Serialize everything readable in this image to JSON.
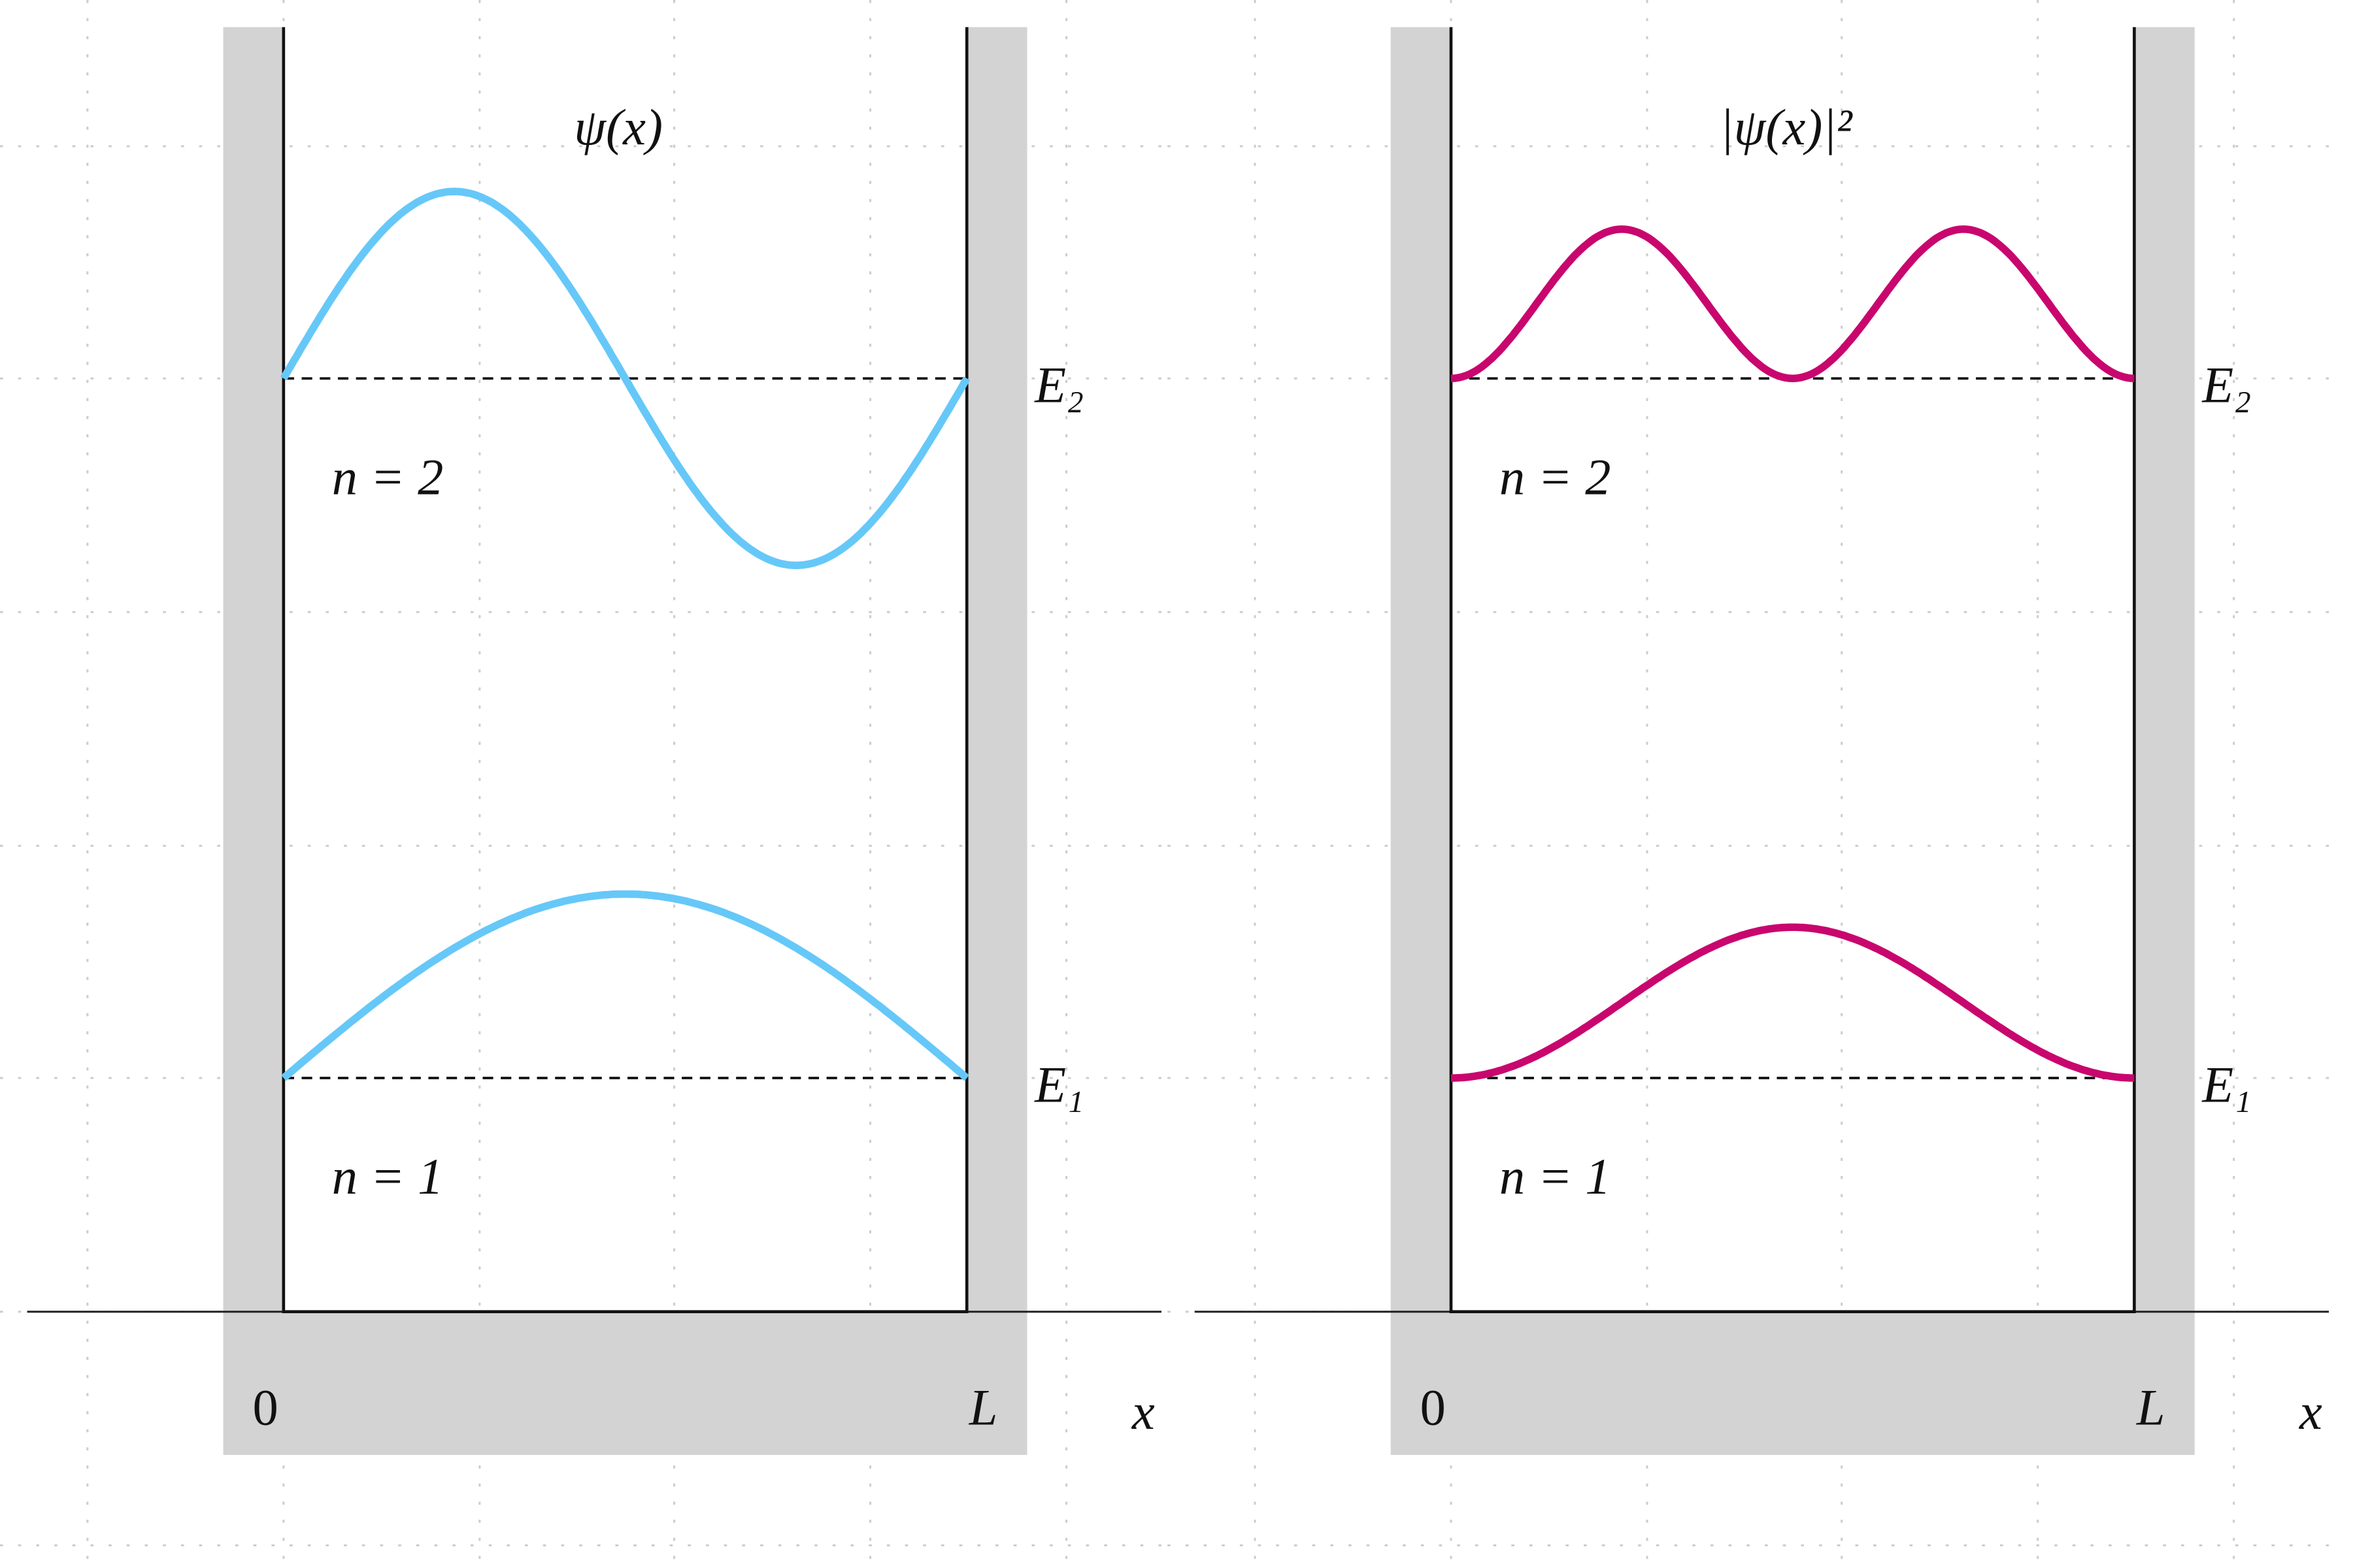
{
  "panels": [
    {
      "title": "ψ(x)",
      "levels": [
        {
          "energy": "E₂",
          "label": "n = 2"
        },
        {
          "energy": "E₁",
          "label": "n = 1"
        }
      ],
      "origin": "0",
      "end": "L",
      "axis": "x"
    },
    {
      "title": "|ψ(x)|²",
      "levels": [
        {
          "energy": "E₂",
          "label": "n = 2"
        },
        {
          "energy": "E₁",
          "label": "n = 1"
        }
      ],
      "origin": "0",
      "end": "L",
      "axis": "x"
    }
  ]
}
